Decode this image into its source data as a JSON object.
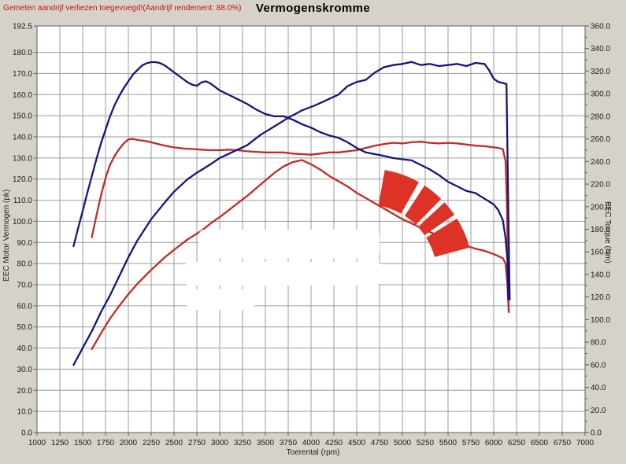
{
  "header": {
    "note": "Gemeten aandrijf verliezen toegevoegd!(Aandrijf rendement: 88.0%)",
    "title": "Vermogenskromme"
  },
  "colors": {
    "background": "#d6d2ca",
    "plot_background": "#ffffff",
    "grid": "#9b9b9b",
    "border": "#5f5f5f",
    "blue_curve": "#15157e",
    "red_curve": "#c22a28",
    "logo_red": "#dd3226",
    "note_red": "#c41414",
    "watermark": "#ffffff"
  },
  "chart_data": {
    "type": "line",
    "title": "Vermogenskromme",
    "xlabel": "Toerental (rpm)",
    "ylabel_left": "EEC Motor Vermogen (pk)",
    "ylabel_right": "EEC Torque (Nm)",
    "x_range": [
      1000,
      7000
    ],
    "x_tick_step": 250,
    "y_left_range": [
      0,
      192.5
    ],
    "y_left_ticks": [
      192.5,
      180,
      170,
      160,
      150,
      140,
      130,
      120,
      110,
      100,
      90,
      80,
      70,
      60,
      50,
      40,
      30,
      20,
      10,
      0
    ],
    "y_right_range": [
      0,
      360
    ],
    "y_right_label_step": 20,
    "y_right_tick_step": 10,
    "grid": true,
    "legend": "none",
    "series": [
      {
        "id": "torque-red",
        "axis": "right",
        "unit": "Nm",
        "color": "#c22a28",
        "peak": {
          "rpm": 2050,
          "value": 260
        },
        "points": [
          [
            1600,
            173
          ],
          [
            1640,
            188
          ],
          [
            1680,
            203
          ],
          [
            1720,
            216
          ],
          [
            1760,
            228
          ],
          [
            1800,
            237
          ],
          [
            1850,
            245
          ],
          [
            1900,
            251
          ],
          [
            1950,
            256
          ],
          [
            2000,
            259.5
          ],
          [
            2050,
            260
          ],
          [
            2100,
            259
          ],
          [
            2200,
            258
          ],
          [
            2300,
            256
          ],
          [
            2400,
            254
          ],
          [
            2500,
            252.5
          ],
          [
            2600,
            251.5
          ],
          [
            2700,
            251
          ],
          [
            2800,
            250.5
          ],
          [
            2900,
            250
          ],
          [
            3000,
            250
          ],
          [
            3100,
            250.5
          ],
          [
            3200,
            250
          ],
          [
            3300,
            249
          ],
          [
            3400,
            248.5
          ],
          [
            3500,
            248
          ],
          [
            3600,
            248
          ],
          [
            3700,
            248
          ],
          [
            3800,
            247
          ],
          [
            3900,
            246.5
          ],
          [
            4000,
            246
          ],
          [
            4100,
            247
          ],
          [
            4200,
            248
          ],
          [
            4300,
            248
          ],
          [
            4400,
            249
          ],
          [
            4500,
            250
          ],
          [
            4600,
            252
          ],
          [
            4700,
            254
          ],
          [
            4800,
            255.5
          ],
          [
            4900,
            256.5
          ],
          [
            5000,
            256
          ],
          [
            5100,
            257
          ],
          [
            5200,
            257.5
          ],
          [
            5300,
            256.5
          ],
          [
            5400,
            256
          ],
          [
            5500,
            256.5
          ],
          [
            5600,
            256
          ],
          [
            5700,
            255
          ],
          [
            5800,
            254
          ],
          [
            5900,
            253.5
          ],
          [
            6000,
            252.5
          ],
          [
            6050,
            252
          ],
          [
            6100,
            251
          ],
          [
            6130,
            240
          ],
          [
            6145,
            200
          ],
          [
            6155,
            150
          ],
          [
            6165,
            107
          ]
        ]
      },
      {
        "id": "power-red",
        "axis": "left",
        "unit": "pk",
        "color": "#c22a28",
        "peak": {
          "rpm": 3900,
          "value": 129
        },
        "points": [
          [
            1600,
            39.5
          ],
          [
            1700,
            47
          ],
          [
            1800,
            54
          ],
          [
            1900,
            60
          ],
          [
            2000,
            65.5
          ],
          [
            2100,
            70.5
          ],
          [
            2250,
            77
          ],
          [
            2400,
            83
          ],
          [
            2500,
            86.5
          ],
          [
            2650,
            91.5
          ],
          [
            2800,
            95.5
          ],
          [
            2900,
            99
          ],
          [
            3000,
            102
          ],
          [
            3150,
            107
          ],
          [
            3300,
            112
          ],
          [
            3450,
            117.5
          ],
          [
            3600,
            123
          ],
          [
            3700,
            126
          ],
          [
            3800,
            128
          ],
          [
            3900,
            129
          ],
          [
            4000,
            127
          ],
          [
            4100,
            124.5
          ],
          [
            4200,
            121.5
          ],
          [
            4300,
            119
          ],
          [
            4400,
            116.5
          ],
          [
            4500,
            113.5
          ],
          [
            4600,
            111
          ],
          [
            4700,
            108.5
          ],
          [
            4800,
            106
          ],
          [
            4900,
            103.5
          ],
          [
            5000,
            101
          ],
          [
            5100,
            99
          ],
          [
            5200,
            97
          ],
          [
            5300,
            95
          ],
          [
            5400,
            93
          ],
          [
            5500,
            91
          ],
          [
            5600,
            90
          ],
          [
            5700,
            88.5
          ],
          [
            5800,
            87
          ],
          [
            5900,
            86
          ],
          [
            6000,
            84.5
          ],
          [
            6050,
            83.5
          ],
          [
            6100,
            82.5
          ],
          [
            6130,
            80
          ],
          [
            6150,
            70
          ],
          [
            6165,
            57
          ]
        ]
      },
      {
        "id": "torque-blue",
        "axis": "right",
        "unit": "Nm",
        "color": "#15157e",
        "peak": {
          "rpm": 2250,
          "value": 328
        },
        "points": [
          [
            1400,
            165
          ],
          [
            1450,
            181
          ],
          [
            1500,
            196
          ],
          [
            1550,
            212
          ],
          [
            1600,
            227
          ],
          [
            1650,
            242
          ],
          [
            1700,
            256
          ],
          [
            1750,
            268
          ],
          [
            1800,
            280
          ],
          [
            1850,
            290
          ],
          [
            1900,
            298
          ],
          [
            1950,
            305
          ],
          [
            2000,
            311
          ],
          [
            2050,
            317
          ],
          [
            2100,
            321
          ],
          [
            2150,
            325
          ],
          [
            2200,
            327
          ],
          [
            2250,
            328
          ],
          [
            2300,
            328
          ],
          [
            2350,
            327
          ],
          [
            2400,
            325
          ],
          [
            2450,
            322
          ],
          [
            2500,
            319
          ],
          [
            2550,
            316
          ],
          [
            2600,
            313
          ],
          [
            2650,
            310
          ],
          [
            2700,
            308
          ],
          [
            2750,
            307
          ],
          [
            2800,
            310
          ],
          [
            2850,
            311
          ],
          [
            2900,
            309
          ],
          [
            2950,
            306
          ],
          [
            3000,
            303
          ],
          [
            3100,
            299
          ],
          [
            3200,
            295
          ],
          [
            3300,
            291
          ],
          [
            3400,
            286
          ],
          [
            3500,
            282
          ],
          [
            3600,
            280
          ],
          [
            3700,
            280
          ],
          [
            3800,
            277
          ],
          [
            3900,
            273
          ],
          [
            4000,
            270
          ],
          [
            4100,
            266
          ],
          [
            4200,
            263
          ],
          [
            4300,
            261
          ],
          [
            4400,
            257
          ],
          [
            4500,
            252
          ],
          [
            4600,
            248
          ],
          [
            4700,
            246.5
          ],
          [
            4800,
            245
          ],
          [
            4900,
            243
          ],
          [
            5000,
            242
          ],
          [
            5100,
            241
          ],
          [
            5200,
            237
          ],
          [
            5300,
            233
          ],
          [
            5400,
            228
          ],
          [
            5500,
            222
          ],
          [
            5600,
            218
          ],
          [
            5700,
            214
          ],
          [
            5800,
            212
          ],
          [
            5900,
            207
          ],
          [
            6000,
            202
          ],
          [
            6050,
            197
          ],
          [
            6100,
            188
          ],
          [
            6130,
            172
          ],
          [
            6150,
            153
          ],
          [
            6160,
            118
          ]
        ]
      },
      {
        "id": "power-blue",
        "axis": "left",
        "unit": "pk",
        "color": "#15157e",
        "peak": {
          "rpm": 5100,
          "value": 175.5
        },
        "points": [
          [
            1400,
            32
          ],
          [
            1450,
            36
          ],
          [
            1500,
            40
          ],
          [
            1600,
            48
          ],
          [
            1700,
            57
          ],
          [
            1800,
            65
          ],
          [
            1900,
            74
          ],
          [
            2000,
            83
          ],
          [
            2100,
            91
          ],
          [
            2250,
            101
          ],
          [
            2400,
            109
          ],
          [
            2500,
            114
          ],
          [
            2650,
            120
          ],
          [
            2750,
            123
          ],
          [
            2900,
            127
          ],
          [
            3000,
            130
          ],
          [
            3150,
            133
          ],
          [
            3300,
            136
          ],
          [
            3450,
            141
          ],
          [
            3600,
            145
          ],
          [
            3750,
            149
          ],
          [
            3900,
            152.5
          ],
          [
            4050,
            155
          ],
          [
            4200,
            158
          ],
          [
            4300,
            160
          ],
          [
            4400,
            164
          ],
          [
            4500,
            166
          ],
          [
            4600,
            167
          ],
          [
            4700,
            170.5
          ],
          [
            4800,
            173
          ],
          [
            4900,
            174
          ],
          [
            5000,
            174.5
          ],
          [
            5100,
            175.5
          ],
          [
            5200,
            174
          ],
          [
            5300,
            174.5
          ],
          [
            5400,
            173.5
          ],
          [
            5500,
            174
          ],
          [
            5600,
            174.5
          ],
          [
            5700,
            173.5
          ],
          [
            5800,
            175
          ],
          [
            5900,
            174.5
          ],
          [
            5950,
            171.5
          ],
          [
            6000,
            167.5
          ],
          [
            6050,
            166
          ],
          [
            6100,
            165.5
          ],
          [
            6140,
            165
          ],
          [
            6155,
            120
          ],
          [
            6165,
            92
          ],
          [
            6175,
            63
          ]
        ]
      }
    ]
  },
  "watermark": {
    "present": true,
    "color": "#ffffff"
  },
  "logo": {
    "present": true,
    "color": "#dd3226",
    "shape": "segmented-red-arc"
  }
}
